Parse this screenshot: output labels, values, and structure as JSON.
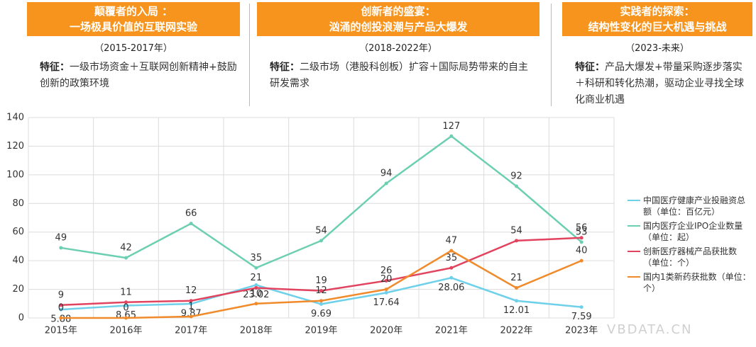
{
  "header": {
    "stages": [
      {
        "title": "颠覆者的入局 ：",
        "subtitle": "一场极具价值的互联网实验",
        "period": "（2015-2017年）",
        "feature_label": "特征：",
        "feature": "一级市场资金＋互联网创新精神+鼓励创新的政策环境"
      },
      {
        "title": "创新者的盛宴：",
        "subtitle": "汹涌的创投浪潮与产品大爆发",
        "period": "（2018-2022年）",
        "feature_label": "特征：",
        "feature": "二级市场（港股科创板）扩容＋国际局势带来的自主研发需求"
      },
      {
        "title": "实践者的探索：",
        "subtitle": "结构性变化的巨大机遇与挑战",
        "period": "（2023-未来）",
        "feature_label": "特征：",
        "feature": "产品大爆发+带量采购逐步落实＋科研和转化热潮，驱动企业寻找全球化商业机遇"
      }
    ]
  },
  "chart_data": {
    "type": "line",
    "categories": [
      "2015年",
      "2016年",
      "2017年",
      "2018年",
      "2019年",
      "2020年",
      "2021年",
      "2022年",
      "2023年"
    ],
    "series": [
      {
        "name": "中国医疗健康产业投融资总额（单位：百亿元）",
        "color": "#6fd0ea",
        "values": [
          5.88,
          8.65,
          9.87,
          23.02,
          9.69,
          17.64,
          28.06,
          12.01,
          7.59
        ]
      },
      {
        "name": "国内医疗企业IPO企业数量（单位：起）",
        "color": "#6ccfb1",
        "values": [
          49,
          42,
          66,
          35,
          54,
          94,
          127,
          92,
          53
        ]
      },
      {
        "name": "创新医疗器械产品获批数（单位：个）",
        "color": "#e2435f",
        "values": [
          9,
          11,
          12,
          21,
          19,
          26,
          35,
          54,
          56
        ]
      },
      {
        "name": "国内1类新药获批数（单位：个）",
        "color": "#f08a2a",
        "values": [
          0,
          0,
          1,
          10,
          12,
          20,
          47,
          21,
          40
        ]
      }
    ],
    "ylim": [
      0,
      140
    ],
    "yticks": [
      0,
      20,
      40,
      60,
      80,
      100,
      120,
      140
    ],
    "grid": true,
    "legend": "right",
    "watermark": "VBDATA.CN"
  }
}
